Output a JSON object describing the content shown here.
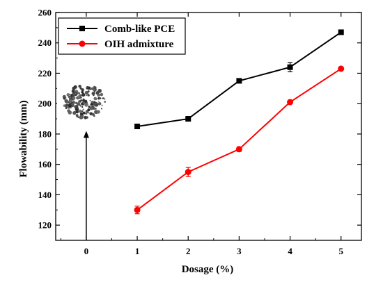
{
  "chart_data": {
    "type": "line",
    "xlabel": "Dosage (%)",
    "ylabel": "Flowability (mm)",
    "xlim": [
      -0.6,
      5.4
    ],
    "ylim": [
      110,
      260
    ],
    "xticks": [
      0,
      1,
      2,
      3,
      4,
      5
    ],
    "yticks": [
      120,
      140,
      160,
      180,
      200,
      220,
      240,
      260
    ],
    "grid": false,
    "legend_position": "top-left",
    "series": [
      {
        "name": "Comb-like PCE",
        "color": "#000000",
        "marker": "square",
        "x": [
          1,
          2,
          3,
          4,
          5
        ],
        "y": [
          185,
          190,
          215,
          224,
          247
        ],
        "error": [
          1.5,
          1.5,
          0,
          3,
          0
        ]
      },
      {
        "name": "OIH admixture",
        "color": "#ff0000",
        "marker": "circle",
        "x": [
          1,
          2,
          3,
          4,
          5
        ],
        "y": [
          130,
          155,
          170,
          201,
          223
        ],
        "error": [
          2.5,
          3,
          1.5,
          1,
          0
        ]
      }
    ],
    "annotation": {
      "type": "arrow-with-photo",
      "x": 0,
      "y_from": 110,
      "y_to": 182,
      "photo_icon": "powder-sample-photo-icon"
    }
  }
}
